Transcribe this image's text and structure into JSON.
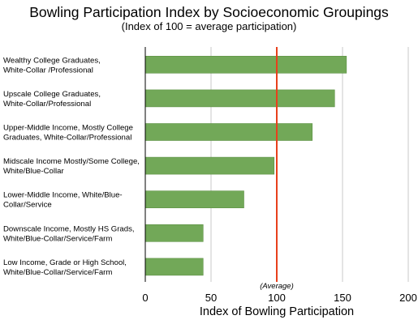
{
  "chart_data": {
    "type": "bar",
    "orientation": "horizontal",
    "title": "Bowling Participation Index by Socioeconomic Groupings",
    "subtitle": "(Index of 100 = average participation)",
    "xlabel": "Index of Bowling Participation",
    "ylabel": "",
    "xlim": [
      0,
      200
    ],
    "xticks": [
      "0",
      "50",
      "100",
      "150",
      "200"
    ],
    "grid": "vertical",
    "categories": [
      [
        "Wealthy College Graduates,",
        "White-Collar /Professional"
      ],
      [
        "Upscale College Graduates,",
        "White-Collar/Professional"
      ],
      [
        "Upper-Middle Income, Mostly College",
        "Graduates, White-Collar/Professional"
      ],
      [
        "Midscale Income Mostly/Some College,",
        "White/Blue-Collar"
      ],
      [
        "Lower-Middle Income, White/Blue-",
        "Collar/Service"
      ],
      [
        "Downscale Income, Mostly HS Grads,",
        "White/Blue-Collar/Service/Farm"
      ],
      [
        "Low Income, Grade or High School,",
        "White/Blue-Collar/Service/Farm"
      ]
    ],
    "values": [
      153,
      144,
      127,
      98,
      75,
      44,
      44
    ],
    "reference_line": {
      "value": 100,
      "label": "(Average)",
      "color": "#e8401c"
    },
    "bar_color": "#72a858",
    "bar_border": "#5e9245"
  }
}
